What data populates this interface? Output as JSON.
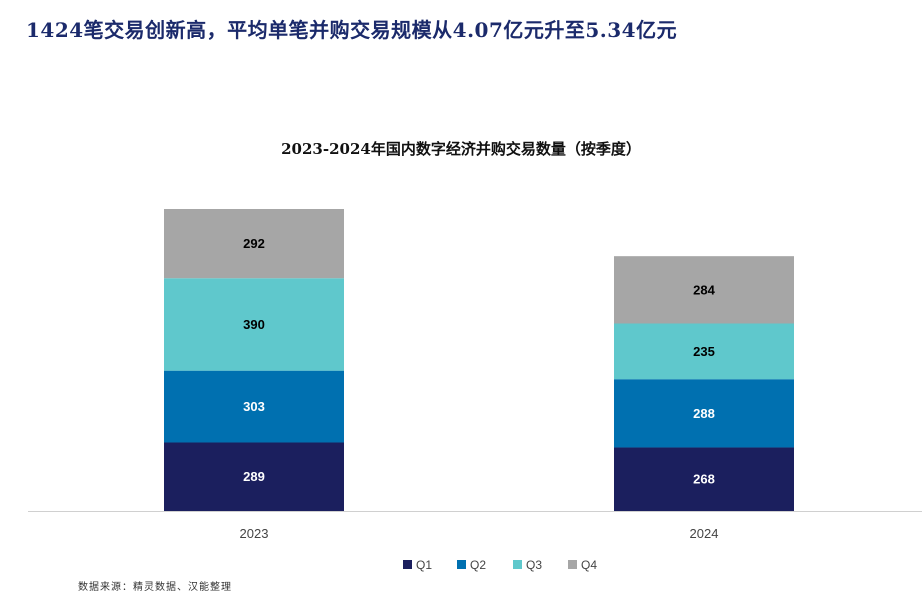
{
  "page_title": "1424笔交易创新高，平均单笔并购交易规模从4.07亿元升至5.34亿元",
  "source_note": "数据来源：精灵数据、汉能整理",
  "chart_data": {
    "type": "bar",
    "stacked": true,
    "title": "2023-2024年国内数字经济并购交易数量（按季度）",
    "xlabel": "",
    "ylabel": "",
    "categories": [
      "2023",
      "2024"
    ],
    "series": [
      {
        "name": "Q1",
        "color": "#1b1f5e",
        "label_color": "#ffffff",
        "values": [
          289,
          268
        ]
      },
      {
        "name": "Q2",
        "color": "#0070b0",
        "label_color": "#ffffff",
        "values": [
          303,
          288
        ]
      },
      {
        "name": "Q3",
        "color": "#5fc8cc",
        "label_color": "#000000",
        "values": [
          390,
          235
        ]
      },
      {
        "name": "Q4",
        "color": "#a6a6a6",
        "label_color": "#000000",
        "values": [
          292,
          284
        ]
      }
    ],
    "ylim": [
      0,
      1274
    ],
    "grid": false,
    "legend_position": "bottom"
  }
}
